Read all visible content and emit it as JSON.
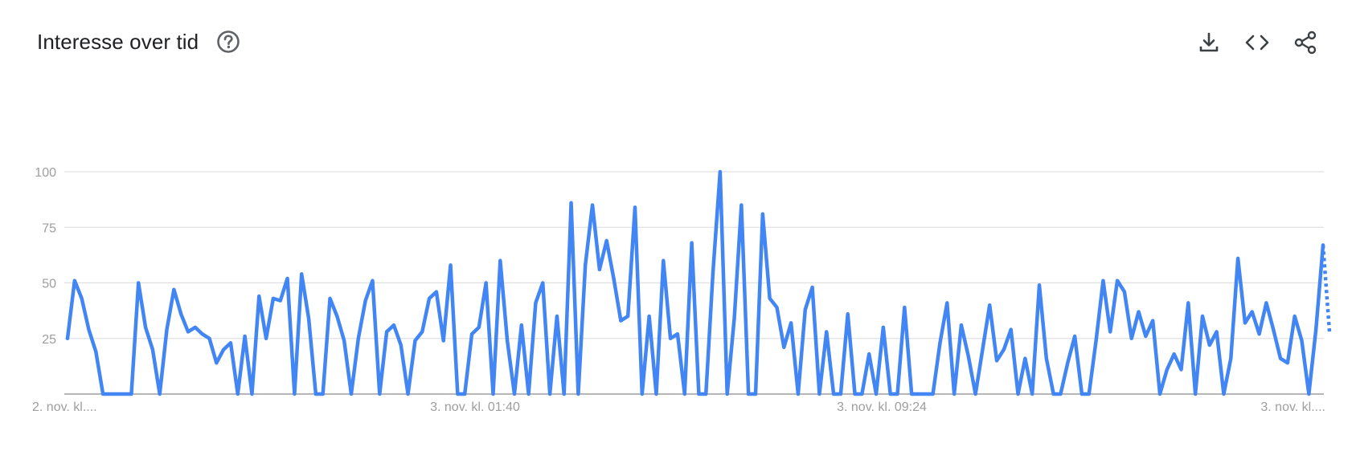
{
  "header": {
    "title": "Interesse over tid"
  },
  "icons": {
    "help": "help-circle-icon",
    "download": "download-icon",
    "embed": "code-embed-icon",
    "share": "share-icon"
  },
  "colors": {
    "line": "#4285f4",
    "grid": "#e0e0e0",
    "axis_text": "#9e9e9e",
    "title": "#202124",
    "icon": "#5f6368"
  },
  "chart_data": {
    "type": "line",
    "title": "",
    "xlabel": "",
    "ylabel": "",
    "ylim": [
      0,
      100
    ],
    "yticks": [
      25,
      50,
      75,
      100
    ],
    "xtick_labels": [
      "2. nov. kl....",
      "3. nov. kl. 01:40",
      "3. nov. kl. 09:24",
      "3. nov. kl...."
    ],
    "grid": true,
    "legend": "none",
    "series": [
      {
        "values": [
          25,
          51,
          43,
          29,
          19,
          0,
          0,
          0,
          0,
          0,
          50,
          30,
          20,
          0,
          29,
          47,
          36,
          28,
          30,
          27,
          25,
          14,
          20,
          23,
          0,
          26,
          0,
          44,
          25,
          43,
          42,
          52,
          0,
          54,
          34,
          0,
          0,
          43,
          35,
          24,
          0,
          25,
          42,
          51,
          0,
          28,
          31,
          22,
          0,
          24,
          28,
          43,
          46,
          24,
          58,
          0,
          0,
          27,
          30,
          50,
          0,
          60,
          24,
          0,
          31,
          0,
          41,
          50,
          0,
          35,
          0,
          86,
          0,
          58,
          85,
          56,
          69,
          52,
          33,
          35,
          84,
          0,
          35,
          0,
          60,
          25,
          27,
          0,
          68,
          0,
          0,
          55,
          100,
          0,
          34,
          85,
          0,
          0,
          81,
          43,
          39,
          21,
          32,
          0,
          38,
          48,
          0,
          28,
          0,
          0,
          36,
          0,
          0,
          18,
          0,
          30,
          0,
          0,
          39,
          0,
          0,
          0,
          0,
          23,
          41,
          0,
          31,
          17,
          0,
          20,
          40,
          15,
          20,
          29,
          0,
          16,
          0,
          49,
          16,
          0,
          0,
          14,
          26,
          0,
          0,
          24,
          51,
          28,
          51,
          46,
          25,
          37,
          26,
          33,
          0,
          11,
          18,
          11,
          41,
          0,
          35,
          22,
          28,
          0,
          16,
          61,
          32,
          37,
          27,
          41,
          29,
          16,
          14,
          35,
          24,
          0,
          29,
          67
        ],
        "partial_tail": [
          67,
          28
        ]
      }
    ]
  }
}
